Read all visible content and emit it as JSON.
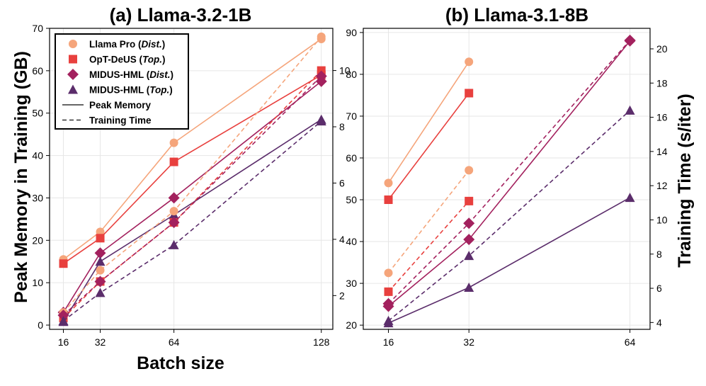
{
  "chart_data": [
    {
      "type": "line",
      "title": "(a) Llama-3.2-1B",
      "xlabel": "Batch size",
      "ylabel": "Peak Memory in Training (GB)",
      "y2label": "",
      "x": [
        16,
        32,
        64,
        128
      ],
      "xticks": [
        "16",
        "32",
        "64",
        "128"
      ],
      "xlim": [
        10,
        133
      ],
      "ylim": [
        -1,
        70
      ],
      "yticks": [
        0,
        10,
        20,
        30,
        40,
        50,
        60,
        70
      ],
      "y2lim": [
        0.8,
        11.5
      ],
      "y2ticks": [
        2,
        4,
        6,
        8,
        10
      ],
      "grid": true,
      "legend_position": "top-left",
      "series": [
        {
          "name": "Llama Pro (Dist.)",
          "color": "#f5a57b",
          "marker": "circle",
          "axis": "left",
          "style": "solid",
          "values": [
            15.5,
            22,
            43,
            67.5
          ]
        },
        {
          "name": "OpT-DeUS (Top.)",
          "color": "#e8403e",
          "marker": "square",
          "axis": "left",
          "style": "solid",
          "values": [
            14.5,
            20.5,
            38.5,
            59
          ]
        },
        {
          "name": "MIDUS-HML (Dist.)",
          "color": "#a3215e",
          "marker": "diamond",
          "axis": "left",
          "style": "solid",
          "values": [
            3,
            17,
            30,
            57.5
          ]
        },
        {
          "name": "MIDUS-HML (Top.)",
          "color": "#5b2d6b",
          "marker": "triangle",
          "axis": "left",
          "style": "solid",
          "values": [
            0.8,
            15,
            26,
            48.5
          ]
        },
        {
          "name": "Llama Pro (Dist.)",
          "color": "#f5a57b",
          "marker": "circle",
          "axis": "right",
          "style": "dashed",
          "values": [
            1.4,
            2.9,
            5.0,
            11.2
          ]
        },
        {
          "name": "OpT-DeUS (Top.)",
          "color": "#e8403e",
          "marker": "square",
          "axis": "right",
          "style": "dashed",
          "values": [
            1.2,
            2.5,
            4.6,
            10.0
          ]
        },
        {
          "name": "MIDUS-HML (Dist.)",
          "color": "#a3215e",
          "marker": "diamond",
          "axis": "right",
          "style": "dashed",
          "values": [
            1.3,
            2.5,
            4.6,
            9.8
          ]
        },
        {
          "name": "MIDUS-HML (Top.)",
          "color": "#5b2d6b",
          "marker": "triangle",
          "axis": "right",
          "style": "dashed",
          "values": [
            1.1,
            2.1,
            3.8,
            8.2
          ]
        }
      ]
    },
    {
      "type": "line",
      "title": "(b) Llama-3.1-8B",
      "xlabel": "",
      "ylabel": "",
      "y2label": "Training Time (s/iter)",
      "x": [
        16,
        32,
        64
      ],
      "xticks": [
        "16",
        "32",
        "64"
      ],
      "xlim": [
        11,
        68
      ],
      "ylim": [
        19,
        91
      ],
      "yticks": [
        20,
        30,
        40,
        50,
        60,
        70,
        80,
        90
      ],
      "y2lim": [
        3.6,
        21.2
      ],
      "y2ticks": [
        4,
        6,
        8,
        10,
        12,
        14,
        16,
        18,
        20
      ],
      "grid": true,
      "series": [
        {
          "name": "Llama Pro (Dist.)",
          "color": "#f5a57b",
          "marker": "circle",
          "axis": "left",
          "style": "solid",
          "values": [
            54,
            83,
            null
          ]
        },
        {
          "name": "OpT-DeUS (Top.)",
          "color": "#e8403e",
          "marker": "square",
          "axis": "left",
          "style": "solid",
          "values": [
            50,
            75.5,
            null
          ]
        },
        {
          "name": "MIDUS-HML (Dist.)",
          "color": "#a3215e",
          "marker": "diamond",
          "axis": "left",
          "style": "solid",
          "values": [
            24.5,
            40.5,
            88
          ]
        },
        {
          "name": "MIDUS-HML (Top.)",
          "color": "#5b2d6b",
          "marker": "triangle",
          "axis": "left",
          "style": "solid",
          "values": [
            20.5,
            29,
            50.5
          ]
        },
        {
          "name": "Llama Pro (Dist.)",
          "color": "#f5a57b",
          "marker": "circle",
          "axis": "right",
          "style": "dashed",
          "values": [
            6.9,
            12.9,
            null
          ]
        },
        {
          "name": "OpT-DeUS (Top.)",
          "color": "#e8403e",
          "marker": "square",
          "axis": "right",
          "style": "dashed",
          "values": [
            5.8,
            11.1,
            null
          ]
        },
        {
          "name": "MIDUS-HML (Dist.)",
          "color": "#a3215e",
          "marker": "diamond",
          "axis": "right",
          "style": "dashed",
          "values": [
            5.1,
            9.8,
            20.5
          ]
        },
        {
          "name": "MIDUS-HML (Top.)",
          "color": "#5b2d6b",
          "marker": "triangle",
          "axis": "right",
          "style": "dashed",
          "values": [
            4.1,
            7.9,
            16.4
          ]
        }
      ]
    }
  ],
  "legend": {
    "items": [
      {
        "name": "Llama Pro",
        "paren": "Dist.",
        "marker": "circle",
        "color": "#f5a57b",
        "style": "marker"
      },
      {
        "name": "OpT-DeUS",
        "paren": "Top.",
        "marker": "square",
        "color": "#e8403e",
        "style": "marker"
      },
      {
        "name": "MIDUS-HML",
        "paren": "Dist.",
        "marker": "diamond",
        "color": "#a3215e",
        "style": "marker"
      },
      {
        "name": "MIDUS-HML",
        "paren": "Top.",
        "marker": "triangle",
        "color": "#5b2d6b",
        "style": "marker"
      },
      {
        "name": "Peak Memory",
        "paren": "",
        "color": "#333333",
        "style": "solid"
      },
      {
        "name": "Training Time",
        "paren": "",
        "color": "#333333",
        "style": "dashed"
      }
    ]
  }
}
